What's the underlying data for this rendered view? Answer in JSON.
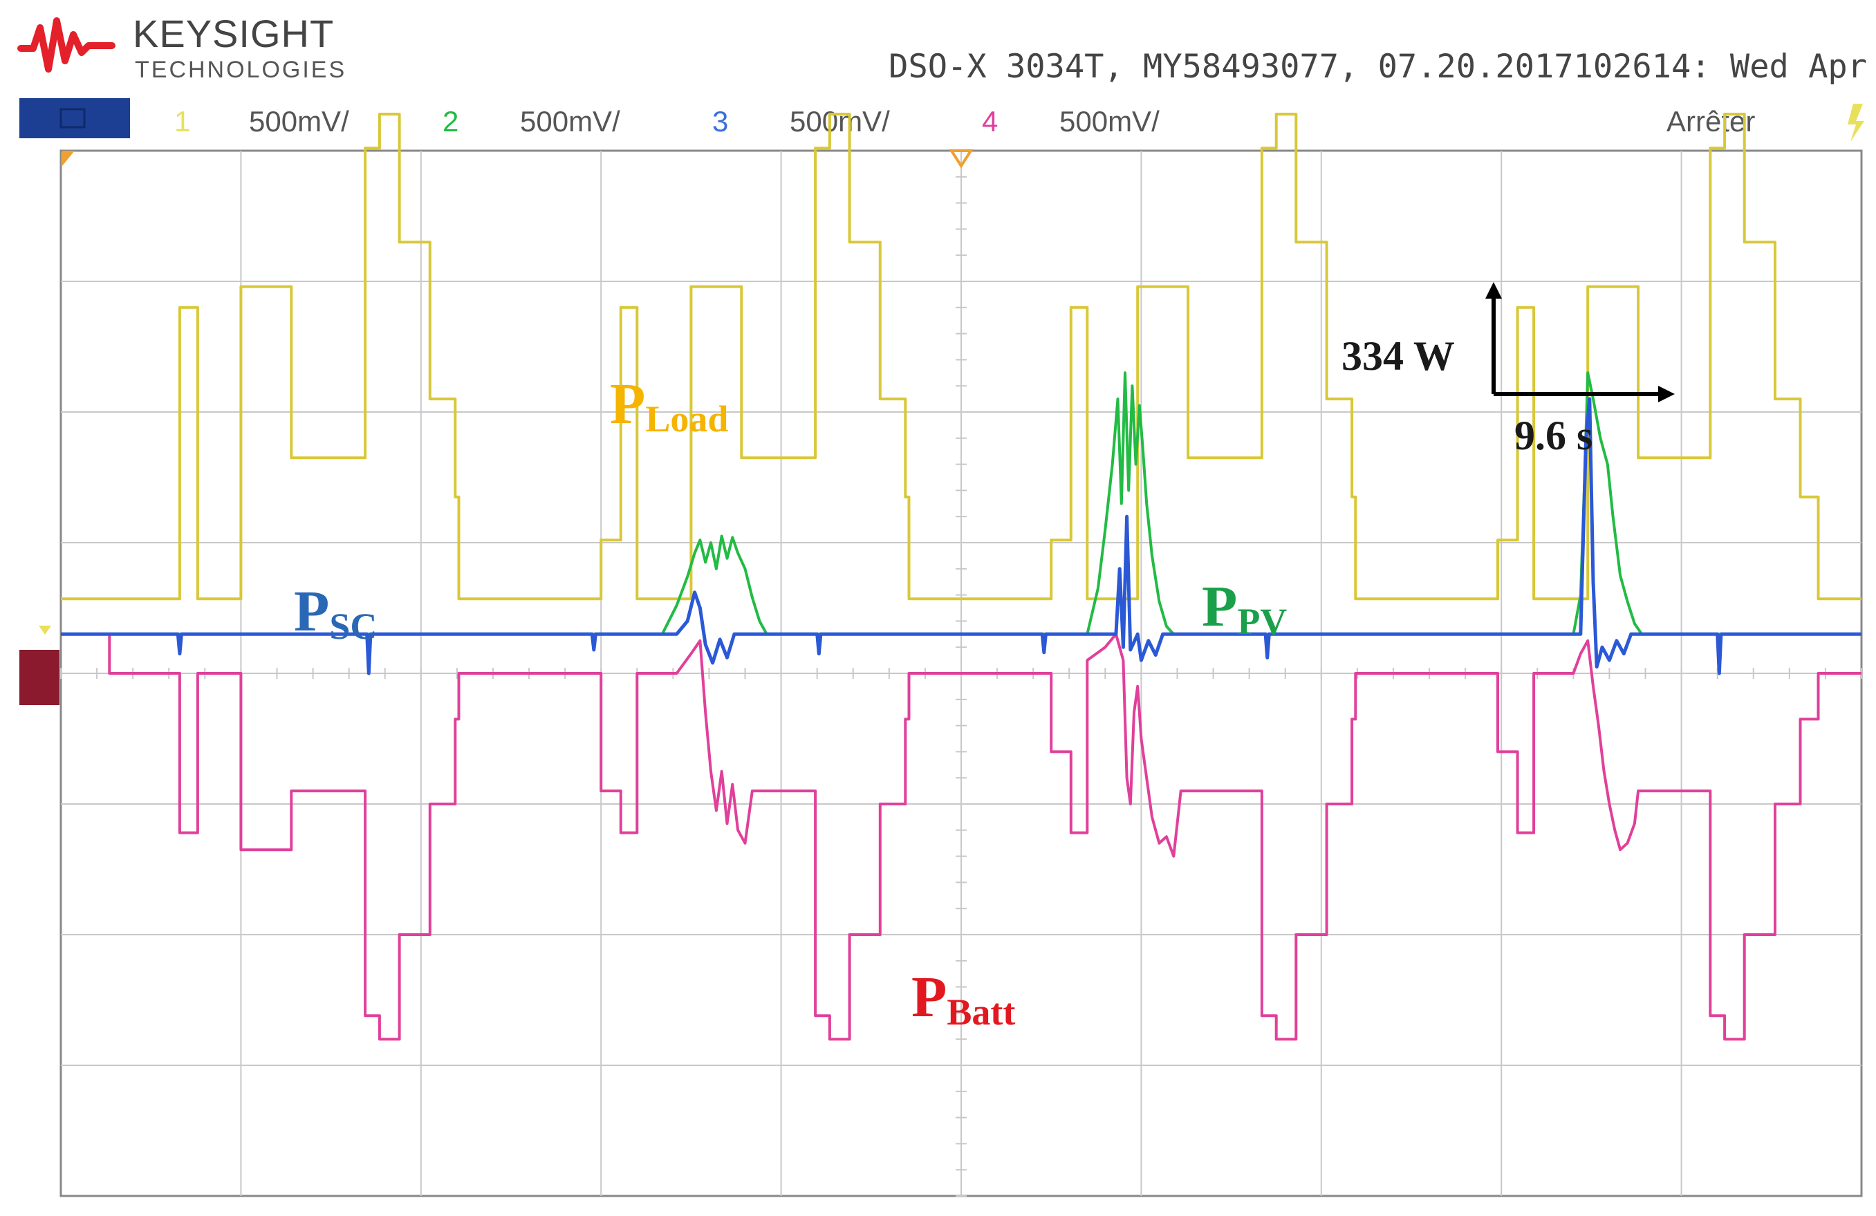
{
  "header": {
    "brand": "KEYSIGHT",
    "brand_sub": "TECHNOLOGIES",
    "instrument_info": "DSO-X 3034T, MY58493077, 07.20.2017102614: Wed Apr",
    "run_state": "Arrêter",
    "colors": {
      "logo_red": "#e4202a",
      "brand_text": "#444444",
      "header_bar": "#1c3f94"
    }
  },
  "channels": [
    {
      "number": "1",
      "scale": "500mV/",
      "color": "#e8e05a"
    },
    {
      "number": "2",
      "scale": "500mV/",
      "color": "#22bb44"
    },
    {
      "number": "3",
      "scale": "500mV/",
      "color": "#3a6fe0"
    },
    {
      "number": "4",
      "scale": "500mV/",
      "color": "#e0409a"
    }
  ],
  "annotations": {
    "scale_power": "334 W",
    "scale_time": "9.6 s"
  },
  "chart_data": {
    "type": "line",
    "grid": true,
    "divisions": {
      "x": 10,
      "y": 8
    },
    "series": [
      {
        "name_main": "P",
        "name_sub": "Load",
        "color": "#d8c838",
        "label_color": "#f5b400",
        "points": [
          [
            0.0,
            0.57
          ],
          [
            0.66,
            0.57
          ],
          [
            0.66,
            2.8
          ],
          [
            0.76,
            2.8
          ],
          [
            0.76,
            0.57
          ],
          [
            1.0,
            0.57
          ],
          [
            1.0,
            2.96
          ],
          [
            1.28,
            2.96
          ],
          [
            1.28,
            1.65
          ],
          [
            1.69,
            1.65
          ],
          [
            1.69,
            4.02
          ],
          [
            1.77,
            4.02
          ],
          [
            1.77,
            4.28
          ],
          [
            1.88,
            4.28
          ],
          [
            1.88,
            3.3
          ],
          [
            2.05,
            3.3
          ],
          [
            2.05,
            2.1
          ],
          [
            2.19,
            2.1
          ],
          [
            2.19,
            1.35
          ],
          [
            2.21,
            1.35
          ],
          [
            2.21,
            0.57
          ],
          [
            3.0,
            0.57
          ],
          [
            3.0,
            1.02
          ],
          [
            3.11,
            1.02
          ],
          [
            3.11,
            2.8
          ],
          [
            3.2,
            2.8
          ],
          [
            3.2,
            0.57
          ],
          [
            3.5,
            0.57
          ],
          [
            3.5,
            2.96
          ],
          [
            3.78,
            2.96
          ],
          [
            3.78,
            1.65
          ],
          [
            4.19,
            1.65
          ],
          [
            4.19,
            4.02
          ],
          [
            4.27,
            4.02
          ],
          [
            4.27,
            4.28
          ],
          [
            4.38,
            4.28
          ],
          [
            4.38,
            3.3
          ],
          [
            4.55,
            3.3
          ],
          [
            4.55,
            2.1
          ],
          [
            4.69,
            2.1
          ],
          [
            4.69,
            1.35
          ],
          [
            4.71,
            1.35
          ],
          [
            4.71,
            0.57
          ],
          [
            5.5,
            0.57
          ],
          [
            5.5,
            1.02
          ],
          [
            5.61,
            1.02
          ],
          [
            5.61,
            2.8
          ],
          [
            5.7,
            2.8
          ],
          [
            5.7,
            0.57
          ],
          [
            5.98,
            0.57
          ],
          [
            5.98,
            2.96
          ],
          [
            6.26,
            2.96
          ],
          [
            6.26,
            1.65
          ],
          [
            6.67,
            1.65
          ],
          [
            6.67,
            4.02
          ],
          [
            6.75,
            4.02
          ],
          [
            6.75,
            4.28
          ],
          [
            6.86,
            4.28
          ],
          [
            6.86,
            3.3
          ],
          [
            7.03,
            3.3
          ],
          [
            7.03,
            2.1
          ],
          [
            7.17,
            2.1
          ],
          [
            7.17,
            1.35
          ],
          [
            7.19,
            1.35
          ],
          [
            7.19,
            0.57
          ],
          [
            7.98,
            0.57
          ],
          [
            7.98,
            1.02
          ],
          [
            8.09,
            1.02
          ],
          [
            8.09,
            2.8
          ],
          [
            8.18,
            2.8
          ],
          [
            8.18,
            0.57
          ],
          [
            8.48,
            0.57
          ],
          [
            8.48,
            2.96
          ],
          [
            8.76,
            2.96
          ],
          [
            8.76,
            1.65
          ],
          [
            9.16,
            1.65
          ],
          [
            9.16,
            4.02
          ],
          [
            9.24,
            4.02
          ],
          [
            9.24,
            4.28
          ],
          [
            9.35,
            4.28
          ],
          [
            9.35,
            3.3
          ],
          [
            9.52,
            3.3
          ],
          [
            9.52,
            2.1
          ],
          [
            9.66,
            2.1
          ],
          [
            9.66,
            1.35
          ],
          [
            9.76,
            1.35
          ],
          [
            9.76,
            0.57
          ],
          [
            10.0,
            0.57
          ]
        ]
      },
      {
        "name_main": "P",
        "name_sub": "PV",
        "color": "#22bb44",
        "label_color": "#1aa04a",
        "points": [
          [
            0.0,
            0.3
          ],
          [
            3.34,
            0.3
          ],
          [
            3.42,
            0.52
          ],
          [
            3.48,
            0.74
          ],
          [
            3.52,
            0.92
          ],
          [
            3.55,
            1.02
          ],
          [
            3.58,
            0.85
          ],
          [
            3.61,
            1.0
          ],
          [
            3.64,
            0.8
          ],
          [
            3.67,
            1.05
          ],
          [
            3.7,
            0.88
          ],
          [
            3.73,
            1.04
          ],
          [
            3.76,
            0.92
          ],
          [
            3.8,
            0.8
          ],
          [
            3.84,
            0.58
          ],
          [
            3.88,
            0.4
          ],
          [
            3.92,
            0.3
          ],
          [
            5.7,
            0.3
          ],
          [
            5.76,
            0.65
          ],
          [
            5.8,
            1.1
          ],
          [
            5.84,
            1.6
          ],
          [
            5.87,
            2.1
          ],
          [
            5.89,
            1.3
          ],
          [
            5.91,
            2.3
          ],
          [
            5.93,
            1.4
          ],
          [
            5.95,
            2.2
          ],
          [
            5.97,
            1.6
          ],
          [
            5.99,
            2.05
          ],
          [
            6.01,
            1.7
          ],
          [
            6.03,
            1.3
          ],
          [
            6.06,
            0.9
          ],
          [
            6.1,
            0.55
          ],
          [
            6.14,
            0.36
          ],
          [
            6.18,
            0.3
          ],
          [
            8.4,
            0.3
          ],
          [
            8.44,
            0.6
          ],
          [
            8.46,
            1.4
          ],
          [
            8.48,
            2.3
          ],
          [
            8.51,
            2.1
          ],
          [
            8.55,
            1.8
          ],
          [
            8.59,
            1.6
          ],
          [
            8.62,
            1.2
          ],
          [
            8.66,
            0.75
          ],
          [
            8.7,
            0.55
          ],
          [
            8.74,
            0.38
          ],
          [
            8.78,
            0.3
          ],
          [
            10.0,
            0.3
          ]
        ]
      },
      {
        "name_main": "P",
        "name_sub": "SC",
        "color": "#2b59d6",
        "label_color": "#2a68b5",
        "points": [
          [
            0.0,
            0.3
          ],
          [
            0.65,
            0.3
          ],
          [
            0.66,
            0.15
          ],
          [
            0.67,
            0.3
          ],
          [
            1.7,
            0.3
          ],
          [
            1.71,
            0.0
          ],
          [
            1.72,
            0.3
          ],
          [
            2.95,
            0.3
          ],
          [
            2.96,
            0.18
          ],
          [
            2.97,
            0.3
          ],
          [
            3.42,
            0.3
          ],
          [
            3.48,
            0.4
          ],
          [
            3.52,
            0.62
          ],
          [
            3.55,
            0.5
          ],
          [
            3.58,
            0.22
          ],
          [
            3.62,
            0.08
          ],
          [
            3.66,
            0.26
          ],
          [
            3.7,
            0.12
          ],
          [
            3.74,
            0.3
          ],
          [
            4.2,
            0.3
          ],
          [
            4.21,
            0.15
          ],
          [
            4.22,
            0.3
          ],
          [
            5.45,
            0.3
          ],
          [
            5.46,
            0.16
          ],
          [
            5.47,
            0.3
          ],
          [
            5.86,
            0.3
          ],
          [
            5.88,
            0.8
          ],
          [
            5.9,
            0.2
          ],
          [
            5.92,
            1.2
          ],
          [
            5.94,
            0.18
          ],
          [
            5.98,
            0.3
          ],
          [
            6.0,
            0.1
          ],
          [
            6.04,
            0.25
          ],
          [
            6.08,
            0.14
          ],
          [
            6.12,
            0.3
          ],
          [
            6.69,
            0.3
          ],
          [
            6.7,
            0.12
          ],
          [
            6.71,
            0.3
          ],
          [
            8.44,
            0.3
          ],
          [
            8.47,
            1.8
          ],
          [
            8.49,
            2.1
          ],
          [
            8.51,
            0.7
          ],
          [
            8.53,
            0.05
          ],
          [
            8.56,
            0.2
          ],
          [
            8.6,
            0.1
          ],
          [
            8.64,
            0.25
          ],
          [
            8.68,
            0.15
          ],
          [
            8.72,
            0.3
          ],
          [
            9.2,
            0.3
          ],
          [
            9.21,
            0.0
          ],
          [
            9.22,
            0.3
          ],
          [
            10.0,
            0.3
          ]
        ]
      },
      {
        "name_main": "P",
        "name_sub": "Batt",
        "color": "#e0409a",
        "label_color": "#e21820",
        "points": [
          [
            0.0,
            0.3
          ],
          [
            0.27,
            0.3
          ],
          [
            0.27,
            0.0
          ],
          [
            0.66,
            0.0
          ],
          [
            0.66,
            -1.22
          ],
          [
            0.76,
            -1.22
          ],
          [
            0.76,
            0.0
          ],
          [
            1.0,
            0.0
          ],
          [
            1.0,
            -1.35
          ],
          [
            1.28,
            -1.35
          ],
          [
            1.28,
            -0.9
          ],
          [
            1.69,
            -0.9
          ],
          [
            1.69,
            -2.62
          ],
          [
            1.77,
            -2.62
          ],
          [
            1.77,
            -2.8
          ],
          [
            1.88,
            -2.8
          ],
          [
            1.88,
            -2.0
          ],
          [
            2.05,
            -2.0
          ],
          [
            2.05,
            -1.0
          ],
          [
            2.19,
            -1.0
          ],
          [
            2.19,
            -0.35
          ],
          [
            2.21,
            -0.35
          ],
          [
            2.21,
            0.0
          ],
          [
            3.0,
            0.0
          ],
          [
            3.0,
            -0.9
          ],
          [
            3.11,
            -0.9
          ],
          [
            3.11,
            -1.22
          ],
          [
            3.2,
            -1.22
          ],
          [
            3.2,
            0.0
          ],
          [
            3.42,
            0.0
          ],
          [
            3.5,
            0.15
          ],
          [
            3.55,
            0.25
          ],
          [
            3.58,
            -0.3
          ],
          [
            3.61,
            -0.75
          ],
          [
            3.64,
            -1.05
          ],
          [
            3.67,
            -0.75
          ],
          [
            3.7,
            -1.15
          ],
          [
            3.73,
            -0.85
          ],
          [
            3.76,
            -1.2
          ],
          [
            3.8,
            -1.3
          ],
          [
            3.84,
            -0.9
          ],
          [
            3.9,
            -0.9
          ],
          [
            4.19,
            -0.9
          ],
          [
            4.19,
            -2.62
          ],
          [
            4.27,
            -2.62
          ],
          [
            4.27,
            -2.8
          ],
          [
            4.38,
            -2.8
          ],
          [
            4.38,
            -2.0
          ],
          [
            4.55,
            -2.0
          ],
          [
            4.55,
            -1.0
          ],
          [
            4.69,
            -1.0
          ],
          [
            4.69,
            -0.35
          ],
          [
            4.71,
            -0.35
          ],
          [
            4.71,
            0.0
          ],
          [
            5.5,
            0.0
          ],
          [
            5.5,
            -0.6
          ],
          [
            5.61,
            -0.6
          ],
          [
            5.61,
            -1.22
          ],
          [
            5.7,
            -1.22
          ],
          [
            5.7,
            0.1
          ],
          [
            5.8,
            0.2
          ],
          [
            5.86,
            0.3
          ],
          [
            5.9,
            0.1
          ],
          [
            5.92,
            -0.8
          ],
          [
            5.94,
            -1.0
          ],
          [
            5.96,
            -0.3
          ],
          [
            5.98,
            -0.1
          ],
          [
            6.0,
            -0.5
          ],
          [
            6.03,
            -0.8
          ],
          [
            6.06,
            -1.1
          ],
          [
            6.1,
            -1.3
          ],
          [
            6.14,
            -1.25
          ],
          [
            6.18,
            -1.4
          ],
          [
            6.22,
            -0.9
          ],
          [
            6.26,
            -0.9
          ],
          [
            6.67,
            -0.9
          ],
          [
            6.67,
            -2.62
          ],
          [
            6.75,
            -2.62
          ],
          [
            6.75,
            -2.8
          ],
          [
            6.86,
            -2.8
          ],
          [
            6.86,
            -2.0
          ],
          [
            7.03,
            -2.0
          ],
          [
            7.03,
            -1.0
          ],
          [
            7.17,
            -1.0
          ],
          [
            7.17,
            -0.35
          ],
          [
            7.19,
            -0.35
          ],
          [
            7.19,
            0.0
          ],
          [
            7.98,
            0.0
          ],
          [
            7.98,
            -0.6
          ],
          [
            8.09,
            -0.6
          ],
          [
            8.09,
            -1.22
          ],
          [
            8.18,
            -1.22
          ],
          [
            8.18,
            0.0
          ],
          [
            8.4,
            0.0
          ],
          [
            8.44,
            0.15
          ],
          [
            8.48,
            0.25
          ],
          [
            8.51,
            -0.1
          ],
          [
            8.54,
            -0.4
          ],
          [
            8.57,
            -0.75
          ],
          [
            8.6,
            -1.0
          ],
          [
            8.63,
            -1.2
          ],
          [
            8.66,
            -1.35
          ],
          [
            8.7,
            -1.3
          ],
          [
            8.74,
            -1.15
          ],
          [
            8.76,
            -0.9
          ],
          [
            9.16,
            -0.9
          ],
          [
            9.16,
            -2.62
          ],
          [
            9.24,
            -2.62
          ],
          [
            9.24,
            -2.8
          ],
          [
            9.35,
            -2.8
          ],
          [
            9.35,
            -2.0
          ],
          [
            9.52,
            -2.0
          ],
          [
            9.52,
            -1.0
          ],
          [
            9.66,
            -1.0
          ],
          [
            9.66,
            -0.35
          ],
          [
            9.76,
            -0.35
          ],
          [
            9.76,
            0.0
          ],
          [
            10.0,
            0.0
          ]
        ]
      }
    ]
  }
}
